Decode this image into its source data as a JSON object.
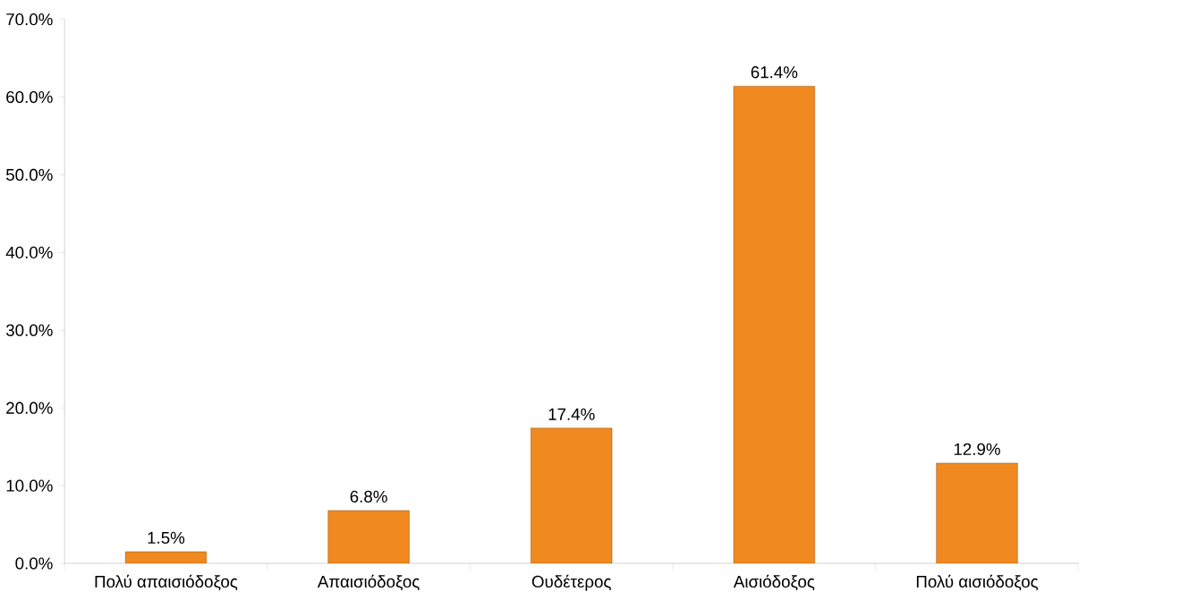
{
  "chart_data": {
    "type": "bar",
    "categories": [
      "Πολύ απαισιόδοξος",
      "Απαισιόδοξος",
      "Ουδέτερος",
      "Αισιόδοξος",
      "Πολύ αισιόδοξος"
    ],
    "values": [
      1.5,
      6.8,
      17.4,
      61.4,
      12.9
    ],
    "value_labels": [
      "1.5%",
      "6.8%",
      "17.4%",
      "61.4%",
      "12.9%"
    ],
    "color": "#f0891f",
    "ylim": [
      0,
      70
    ],
    "yticks": [
      {
        "value": 0,
        "label": "0.0%"
      },
      {
        "value": 10,
        "label": "10.0%"
      },
      {
        "value": 20,
        "label": "20.0%"
      },
      {
        "value": 30,
        "label": "30.0%"
      },
      {
        "value": 40,
        "label": "40.0%"
      },
      {
        "value": 50,
        "label": "50.0%"
      },
      {
        "value": 60,
        "label": "60.0%"
      },
      {
        "value": 70,
        "label": "70.0%"
      }
    ]
  }
}
